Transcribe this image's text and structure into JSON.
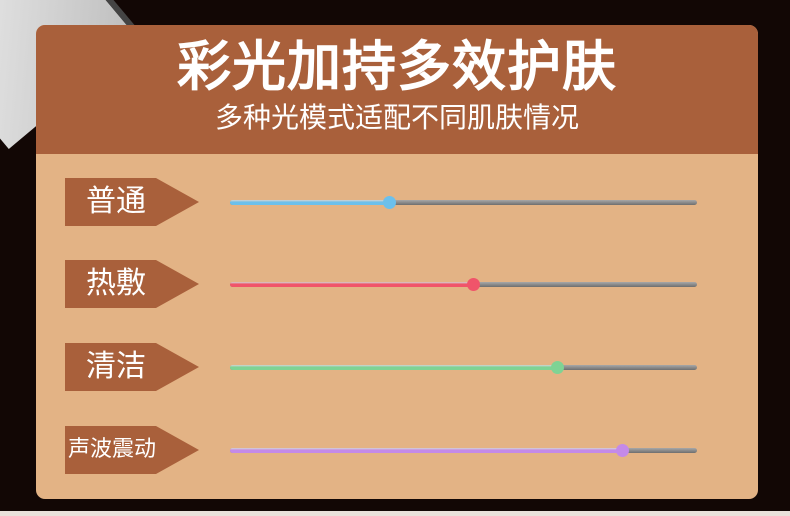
{
  "header": {
    "title": "彩光加持多效护肤",
    "subtitle": "多种光模式适配不同肌肤情况"
  },
  "modes": [
    {
      "label": "普通",
      "level": 0.34,
      "color": "#6cc0ec"
    },
    {
      "label": "热敷",
      "level": 0.52,
      "color": "#f0546a"
    },
    {
      "label": "清洁",
      "level": 0.7,
      "color": "#7fd394"
    },
    {
      "label": "声波震动",
      "level": 0.84,
      "color": "#c48ae8"
    }
  ]
}
